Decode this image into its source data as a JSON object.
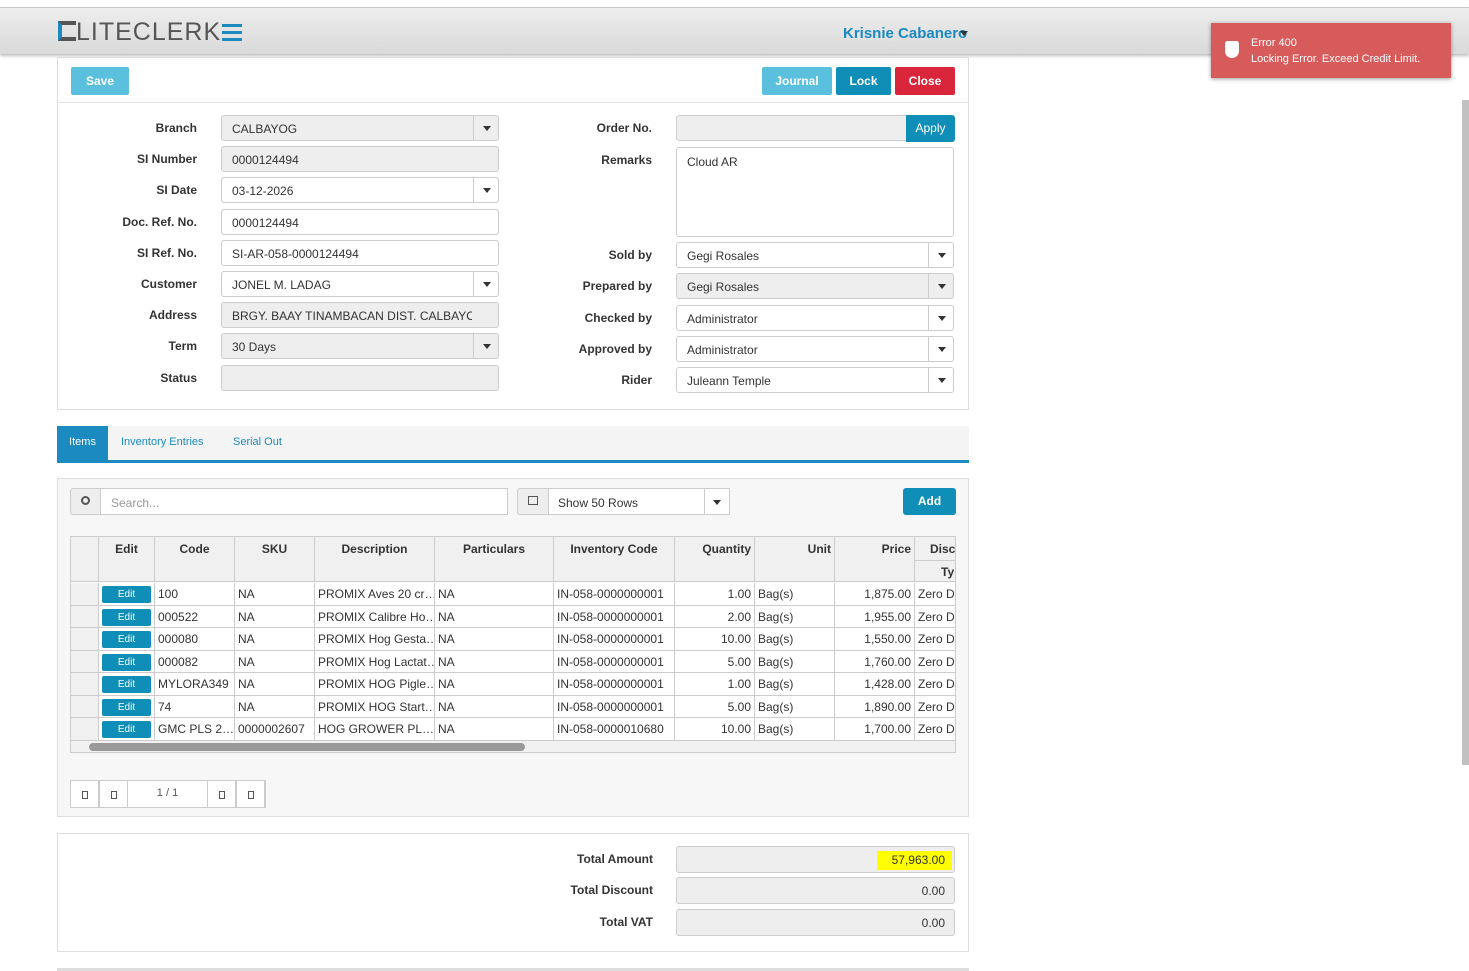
{
  "header": {
    "logo": "LITECLERK",
    "user": "Krisnie Cabanero"
  },
  "toast": {
    "title": "Error 400",
    "message": "Locking Error. Exceed Credit Limit."
  },
  "toolbar": {
    "save": "Save",
    "journal": "Journal",
    "lock": "Lock",
    "close": "Close"
  },
  "form": {
    "left": [
      {
        "label": "Branch",
        "value": "CALBAYOG"
      },
      {
        "label": "SI Number",
        "value": "0000124494"
      },
      {
        "label": "SI Date",
        "value": "03-12-2026"
      },
      {
        "label": "Doc. Ref. No.",
        "value": "0000124494"
      },
      {
        "label": "SI Ref. No.",
        "value": "SI-AR-058-0000124494"
      },
      {
        "label": "Customer",
        "value": "JONEL M. LADAG"
      },
      {
        "label": "Address",
        "value": "BRGY. BAAY TINAMBACAN DIST. CALBAYOG CIT"
      },
      {
        "label": "Term",
        "value": "30 Days"
      },
      {
        "label": "Status"
      }
    ],
    "right": [
      {
        "label": "Order No."
      },
      {
        "label": "Remarks",
        "value": "Cloud AR"
      },
      {
        "label": "Sold by",
        "value": "Gegi Rosales"
      },
      {
        "label": "Prepared by",
        "value": "Gegi Rosales"
      },
      {
        "label": "Checked by",
        "value": "Administrator"
      },
      {
        "label": "Approved by",
        "value": "Administrator"
      },
      {
        "label": "Rider",
        "value": "Juleann Temple"
      }
    ],
    "apply": "Apply"
  },
  "tabs": [
    "Items",
    "Inventory Entries",
    "Serial Out"
  ],
  "items": {
    "search_placeholder": "Search...",
    "rows_select": "Show 50 Rows",
    "add": "Add",
    "columns": [
      "Edit",
      "Code",
      "SKU",
      "Description",
      "Particulars",
      "Inventory Code",
      "Quantity",
      "Unit",
      "Price",
      "Disc"
    ],
    "subheader": "Ty",
    "edit_label": "Edit",
    "rows": [
      [
        "100",
        "NA",
        "PROMIX Aves 20 cr…",
        "NA",
        "IN-058-0000000001",
        "1.00",
        "Bag(s)",
        "1,875.00",
        "Zero Di"
      ],
      [
        "000522",
        "NA",
        "PROMIX Calibre Ho…",
        "NA",
        "IN-058-0000000001",
        "2.00",
        "Bag(s)",
        "1,955.00",
        "Zero Di"
      ],
      [
        "000080",
        "NA",
        "PROMIX Hog Gesta…",
        "NA",
        "IN-058-0000000001",
        "10.00",
        "Bag(s)",
        "1,550.00",
        "Zero Di"
      ],
      [
        "000082",
        "NA",
        "PROMIX Hog Lactat…",
        "NA",
        "IN-058-0000000001",
        "5.00",
        "Bag(s)",
        "1,760.00",
        "Zero Di"
      ],
      [
        "MYLORA349",
        "NA",
        "PROMIX HOG Pigle…",
        "NA",
        "IN-058-0000000001",
        "1.00",
        "Bag(s)",
        "1,428.00",
        "Zero Di"
      ],
      [
        "74",
        "NA",
        "PROMIX HOG Start…",
        "NA",
        "IN-058-0000000001",
        "5.00",
        "Bag(s)",
        "1,890.00",
        "Zero Di"
      ],
      [
        "GMC PLS 2…",
        "0000002607",
        "HOG GROWER PL…",
        "NA",
        "IN-058-0000010680",
        "10.00",
        "Bag(s)",
        "1,700.00",
        "Zero Di"
      ]
    ],
    "page": "1 / 1"
  },
  "totals": [
    {
      "label": "Total Amount",
      "value": "57,963.00"
    },
    {
      "label": "Total Discount",
      "value": "0.00"
    },
    {
      "label": "Total VAT",
      "value": "0.00"
    }
  ]
}
